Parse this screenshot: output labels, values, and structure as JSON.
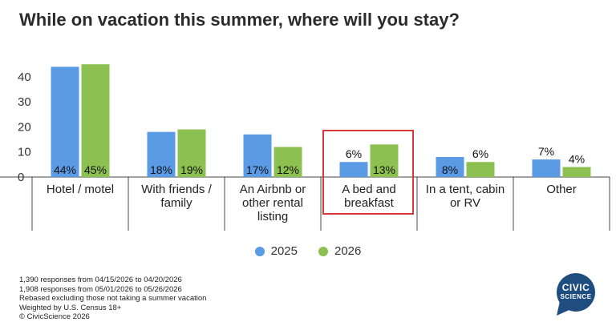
{
  "chart_data": {
    "type": "bar",
    "title": "While on vacation this summer, where will you stay?",
    "xlabel": "",
    "ylabel": "",
    "ylim": [
      0,
      47
    ],
    "yticks": [
      0,
      10,
      20,
      30,
      40
    ],
    "grid": false,
    "legend_position": "bottom",
    "categories": [
      [
        "Hotel / motel"
      ],
      [
        "With friends /",
        "family"
      ],
      [
        "An Airbnb or",
        "other rental",
        "listing"
      ],
      [
        "A bed and",
        "breakfast"
      ],
      [
        "In a tent, cabin",
        "or RV"
      ],
      [
        "Other"
      ]
    ],
    "series": [
      {
        "name": "2025",
        "color": "#5B9BE6",
        "values": [
          44,
          18,
          17,
          6,
          8,
          7
        ],
        "labels": [
          "44%",
          "18%",
          "17%",
          "6%",
          "8%",
          "7%"
        ]
      },
      {
        "name": "2026",
        "color": "#8CC152",
        "values": [
          45,
          19,
          12,
          13,
          6,
          4
        ],
        "labels": [
          "45%",
          "19%",
          "12%",
          "13%",
          "6%",
          "4%"
        ]
      }
    ],
    "highlight_category_index": 3,
    "highlight_color": "#D63A3A"
  },
  "notes": [
    "1,390 responses from 04/15/2026 to 04/20/2026",
    "1,908 responses from 05/01/2026 to 05/26/2026",
    "Rebased excluding those not taking a summer vacation",
    "Weighted by U.S. Census 18+",
    "© CivicScience 2026"
  ],
  "logo": {
    "line1": "CIVIC",
    "line2": "SCIENCE",
    "color": "#1F4D80"
  }
}
